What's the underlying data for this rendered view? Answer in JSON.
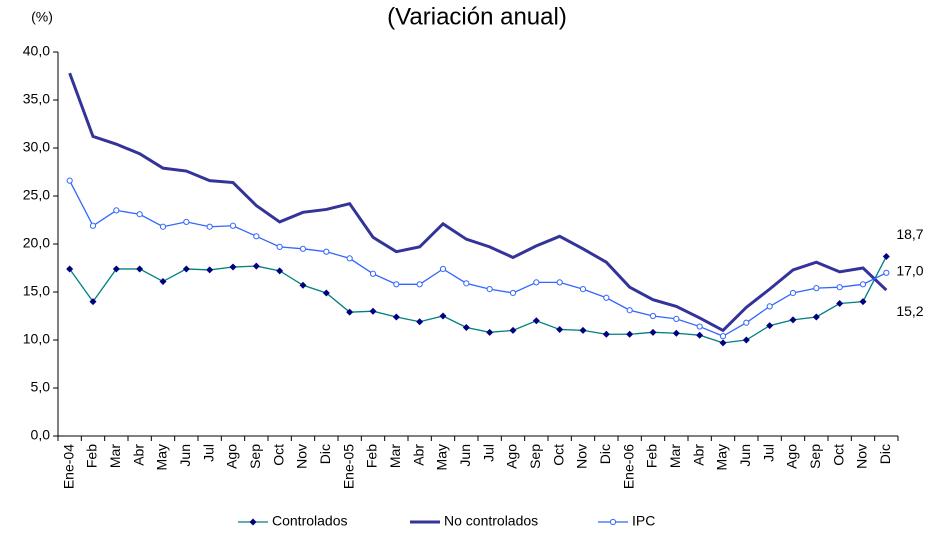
{
  "chart_data": {
    "type": "line",
    "subtitle": "(Variación anual)",
    "y_label": "(%)",
    "categories": [
      "Ene-04",
      "Feb",
      "Mar",
      "Abr",
      "May",
      "Jun",
      "Jul",
      "Ago",
      "Sep",
      "Oct",
      "Nov",
      "Dic",
      "Ene-05",
      "Feb",
      "Mar",
      "Abr",
      "May",
      "Jun",
      "Jul",
      "Ago",
      "Sep",
      "Oct",
      "Nov",
      "Dic",
      "Ene-06",
      "Feb",
      "Mar",
      "Abr",
      "May",
      "Jun",
      "Jul",
      "Ago",
      "Sep",
      "Oct",
      "Nov",
      "Dic"
    ],
    "ylim": [
      0,
      40
    ],
    "yticks": [
      {
        "value": 0,
        "label": "0,0"
      },
      {
        "value": 5,
        "label": "5,0"
      },
      {
        "value": 10,
        "label": "10,0"
      },
      {
        "value": 15,
        "label": "15,0"
      },
      {
        "value": 20,
        "label": "20,0"
      },
      {
        "value": 25,
        "label": "25,0"
      },
      {
        "value": 30,
        "label": "30,0"
      },
      {
        "value": 35,
        "label": "35,0"
      },
      {
        "value": 40,
        "label": "40,0"
      }
    ],
    "legend": "bottom",
    "series": [
      {
        "name": "Controlados",
        "color": "#008080",
        "marker": "diamond",
        "marker_color": "#000080",
        "values": [
          17.4,
          14.0,
          17.4,
          17.4,
          16.1,
          17.4,
          17.3,
          17.6,
          17.7,
          17.2,
          15.7,
          14.9,
          12.9,
          13.0,
          12.4,
          11.9,
          12.5,
          11.3,
          10.8,
          11.0,
          12.0,
          11.1,
          11.0,
          10.6,
          10.6,
          10.8,
          10.7,
          10.5,
          9.7,
          10.0,
          11.5,
          12.1,
          12.4,
          13.8,
          14.0,
          18.7
        ],
        "value_labels": [
          null,
          null,
          null,
          null,
          null,
          null,
          null,
          null,
          null,
          null,
          null,
          null,
          null,
          null,
          null,
          null,
          null,
          null,
          null,
          null,
          null,
          null,
          null,
          null,
          null,
          null,
          null,
          null,
          null,
          null,
          null,
          null,
          null,
          null,
          null,
          "18,7"
        ]
      },
      {
        "name": "No controlados",
        "color": "#333399",
        "marker": "none",
        "values": [
          37.8,
          31.2,
          30.4,
          29.4,
          27.9,
          27.6,
          26.6,
          26.4,
          24.0,
          22.3,
          23.3,
          23.6,
          24.2,
          20.7,
          19.2,
          19.7,
          22.1,
          20.5,
          19.7,
          18.6,
          19.8,
          20.8,
          19.5,
          18.1,
          15.5,
          14.2,
          13.5,
          12.3,
          11.0,
          13.4,
          15.3,
          17.3,
          18.1,
          17.1,
          17.5,
          15.2
        ],
        "value_labels": [
          null,
          null,
          null,
          null,
          null,
          null,
          null,
          null,
          null,
          null,
          null,
          null,
          null,
          null,
          null,
          null,
          null,
          null,
          null,
          null,
          null,
          null,
          null,
          null,
          null,
          null,
          null,
          null,
          null,
          null,
          null,
          null,
          null,
          null,
          null,
          "15,2"
        ]
      },
      {
        "name": "IPC",
        "color": "#3366ff",
        "marker": "circle",
        "marker_color": "#3366ff",
        "values": [
          26.6,
          21.9,
          23.5,
          23.1,
          21.8,
          22.3,
          21.8,
          21.9,
          20.8,
          19.7,
          19.5,
          19.2,
          18.5,
          16.9,
          15.8,
          15.8,
          17.4,
          15.9,
          15.3,
          14.9,
          16.0,
          16.0,
          15.3,
          14.4,
          13.1,
          12.5,
          12.2,
          11.4,
          10.4,
          11.8,
          13.5,
          14.9,
          15.4,
          15.5,
          15.8,
          17.0
        ],
        "value_labels": [
          null,
          null,
          null,
          null,
          null,
          null,
          null,
          null,
          null,
          null,
          null,
          null,
          null,
          null,
          null,
          null,
          null,
          null,
          null,
          null,
          null,
          null,
          null,
          null,
          null,
          null,
          null,
          null,
          null,
          null,
          null,
          null,
          null,
          null,
          null,
          "17,0"
        ]
      }
    ]
  }
}
